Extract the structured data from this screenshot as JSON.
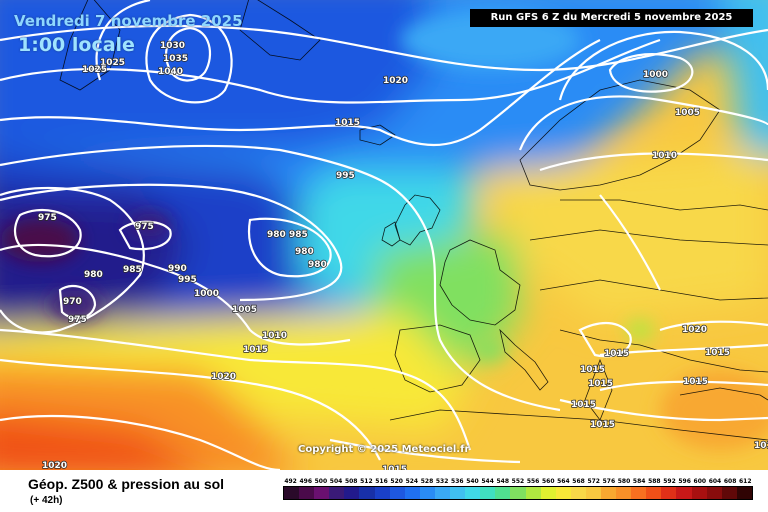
{
  "header": {
    "date": "Vendredi 7 novembre 2025",
    "time": "1:00 locale",
    "run": "Run GFS 6 Z du Mercredi 5 novembre 2025"
  },
  "copyright": "Copyright © 2025 Meteociel.fr",
  "footer": {
    "title": "Géop. Z500 & pression au sol",
    "subtitle": "(+ 42h)"
  },
  "scale": {
    "labels": [
      "492",
      "496",
      "500",
      "504",
      "508",
      "512",
      "516",
      "520",
      "524",
      "528",
      "532",
      "536",
      "540",
      "544",
      "548",
      "552",
      "556",
      "560",
      "564",
      "568",
      "572",
      "576",
      "580",
      "584",
      "588",
      "592",
      "596",
      "600",
      "604",
      "608",
      "612"
    ],
    "colors": [
      "#2a0a2a",
      "#4a0a4a",
      "#6a1070",
      "#3a1a78",
      "#221a8c",
      "#1830a8",
      "#1a40c8",
      "#1e58e0",
      "#2070f0",
      "#2a8cf5",
      "#3aa8f5",
      "#40c0f0",
      "#40d8e8",
      "#40e0c0",
      "#50e090",
      "#80e060",
      "#b0e840",
      "#e0f030",
      "#f8e838",
      "#f8d848",
      "#f8c840",
      "#f8a830",
      "#f89028",
      "#f87020",
      "#f05018",
      "#e03018",
      "#c81818",
      "#a81010",
      "#880c0c",
      "#600808",
      "#300404"
    ]
  },
  "isobars": [
    {
      "text": "1030"
    },
    {
      "text": "1035"
    },
    {
      "text": "1040"
    },
    {
      "text": "1025"
    },
    {
      "text": "1025"
    },
    {
      "text": "1020"
    },
    {
      "text": "1015"
    },
    {
      "text": "995"
    },
    {
      "text": "975"
    },
    {
      "text": "975"
    },
    {
      "text": "980"
    },
    {
      "text": "985"
    },
    {
      "text": "980"
    },
    {
      "text": "980"
    },
    {
      "text": "980"
    },
    {
      "text": "985"
    },
    {
      "text": "990"
    },
    {
      "text": "995"
    },
    {
      "text": "1000"
    },
    {
      "text": "970"
    },
    {
      "text": "975"
    },
    {
      "text": "1005"
    },
    {
      "text": "1010"
    },
    {
      "text": "1015"
    },
    {
      "text": "1020"
    },
    {
      "text": "1020"
    },
    {
      "text": "1015"
    },
    {
      "text": "1000"
    },
    {
      "text": "1005"
    },
    {
      "text": "1010"
    },
    {
      "text": "1020"
    },
    {
      "text": "1015"
    },
    {
      "text": "1015"
    },
    {
      "text": "1015"
    },
    {
      "text": "1015"
    },
    {
      "text": "1015"
    },
    {
      "text": "1015"
    },
    {
      "text": "1015"
    },
    {
      "text": "1015"
    }
  ]
}
